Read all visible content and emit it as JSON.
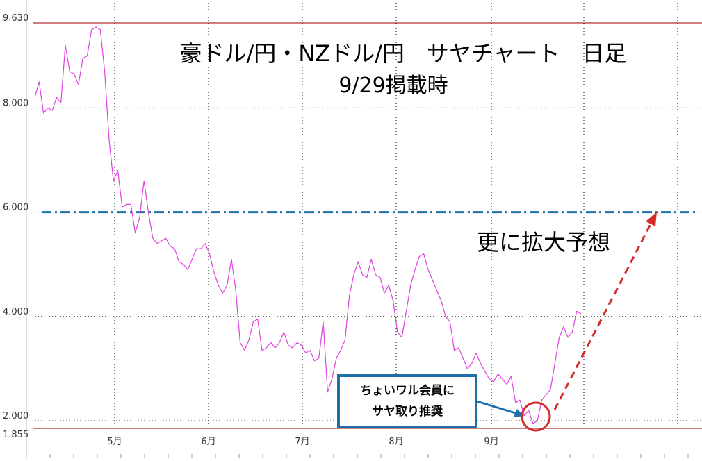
{
  "chart_data": {
    "type": "line",
    "title": "豪ドル/円・NZドル/円　サヤチャート　日足",
    "subtitle": "9/29掲載時",
    "y_ticks": [
      "9.630",
      "8.000",
      "6.000",
      "4.000",
      "2.000",
      "1.855"
    ],
    "ylim": [
      1.855,
      9.63
    ],
    "months": [
      "5月",
      "6月",
      "7月",
      "8月",
      "9月"
    ],
    "reference_line": {
      "value": 6.0,
      "style": "dash-dot",
      "color": "#1f6fa8"
    },
    "annotation_forecast": "更に拡大予想",
    "annotation_callout": [
      "ちょいワル会員に",
      "サヤ取り推奨"
    ],
    "series": [
      {
        "color": "#e040e0",
        "values": [
          8.2,
          8.5,
          7.9,
          8.0,
          7.95,
          8.2,
          8.1,
          9.2,
          8.7,
          8.65,
          8.45,
          8.95,
          9.0,
          9.5,
          9.55,
          9.5,
          8.7,
          7.4,
          6.6,
          6.8,
          6.1,
          6.15,
          6.15,
          5.6,
          5.9,
          6.6,
          6.0,
          5.5,
          5.4,
          5.45,
          5.5,
          5.35,
          5.3,
          5.05,
          5.0,
          4.9,
          5.1,
          5.3,
          5.3,
          5.4,
          5.2,
          4.85,
          4.6,
          4.45,
          4.6,
          5.1,
          4.5,
          3.5,
          3.35,
          3.55,
          3.9,
          3.95,
          3.35,
          3.4,
          3.5,
          3.4,
          3.5,
          3.7,
          3.45,
          3.4,
          3.5,
          3.45,
          3.3,
          3.35,
          3.15,
          3.2,
          3.9,
          2.55,
          2.8,
          3.2,
          3.35,
          3.55,
          4.4,
          4.8,
          5.05,
          4.8,
          4.75,
          5.1,
          4.8,
          4.75,
          4.45,
          4.6,
          4.3,
          3.7,
          3.6,
          4.1,
          4.6,
          4.9,
          5.15,
          5.2,
          4.9,
          4.7,
          4.5,
          4.3,
          4.0,
          3.9,
          3.35,
          3.4,
          3.2,
          3.0,
          3.1,
          3.3,
          3.1,
          2.95,
          2.8,
          2.75,
          2.9,
          2.8,
          2.7,
          2.85,
          2.35,
          2.4,
          2.1,
          2.2,
          1.95,
          2.0,
          2.4,
          2.5,
          2.6,
          3.1,
          3.6,
          3.8,
          3.6,
          3.7,
          4.1,
          4.05
        ]
      }
    ]
  }
}
